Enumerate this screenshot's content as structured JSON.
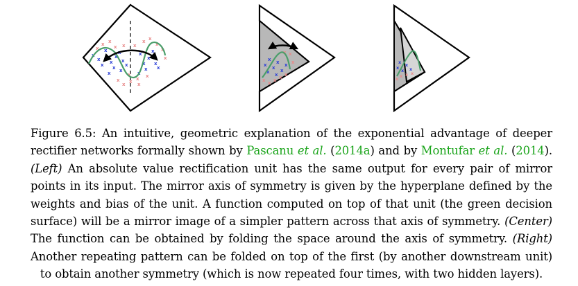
{
  "caption": {
    "l1_label": "Figure 6.5:",
    "l1_text": " An intuitive, geometric explanation of the exponential advantage of deeper",
    "l2_a": "rectifier networks formally shown by ",
    "l2_c1_name": "Pascanu",
    "l2_c1_etal": " et al.",
    "l2_b": " (",
    "l2_c1_year": "2014a",
    "l2_c": ") and by ",
    "l2_c2_name": "Montufar",
    "l2_c2_etal": " et al.",
    "l2_d": " (",
    "l2_c2_year": "2014",
    "l2_e": ").",
    "l3_left": "(Left)",
    "l3_text": " An absolute value rectification unit has the same output for every pair of mirror",
    "l4": "points in its input. The mirror axis of symmetry is given by the hyperplane defined by the",
    "l5": "weights and bias of the unit. A function computed on top of that unit (the green decision",
    "l6": "surface) will be a mirror image of a simpler pattern across that axis of symmetry.",
    "l6_center": "(Center)",
    "l7": "The function can be obtained by folding the space around the axis of symmetry.",
    "l7_right": "(Right)",
    "l8": "Another repeating pattern can be folded on top of the first (by another downstream unit)",
    "l9": "to obtain another symmetry (which is now repeated four times, with two hidden layers)."
  },
  "colors": {
    "cite": "#1aa41a",
    "decision_surface": "#4a9e6a",
    "class_a": "#2b3fd6",
    "class_b": "#e88a8a",
    "fold_fill": "#b8b8b8"
  }
}
